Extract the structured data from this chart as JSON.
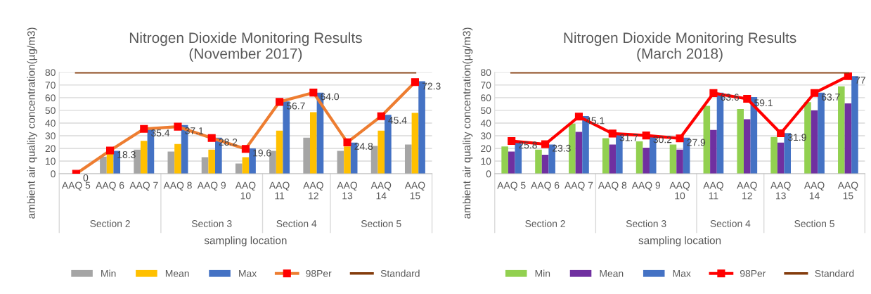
{
  "chart_data": [
    {
      "type": "bar",
      "title": "Nitrogen Dioxide Monitoring Results",
      "subtitle": "(November 2017)",
      "xlabel": "sampling location",
      "ylabel": "ambient air quality concentration(µg/m3)",
      "categories": [
        "AAQ 5",
        "AAQ 6",
        "AAQ 7",
        "AAQ 8",
        "AAQ 9",
        "AAQ 10",
        "AAQ 11",
        "AAQ 12",
        "AAQ 13",
        "AAQ 14",
        "AAQ 15"
      ],
      "series": [
        {
          "name": "Min",
          "color": "#a5a5a5",
          "values": [
            0,
            13.5,
            19,
            17.5,
            13,
            8,
            18,
            28.5,
            18,
            22,
            23
          ]
        },
        {
          "name": "Mean",
          "color": "#ffc000",
          "values": [
            0,
            16,
            26,
            23.5,
            19,
            13,
            34,
            48.5,
            21.5,
            34,
            48
          ]
        },
        {
          "name": "Max",
          "color": "#4472c4",
          "values": [
            0,
            18,
            35,
            38.5,
            28.5,
            20,
            57,
            64,
            24.5,
            46.5,
            73
          ]
        },
        {
          "name": "98Per",
          "type": "line",
          "color": "#ed7d31",
          "marker": "square",
          "colors": [
            "#ff0000",
            "#ff0000",
            "#ff0000",
            "#ff0000",
            "#ff0000",
            "#ff0000",
            "#ff0000",
            "#ff0000",
            "#ff0000",
            "#ff0000",
            "#ff0000"
          ],
          "values": [
            0,
            18.3,
            35.4,
            37.1,
            28.2,
            19.6,
            56.7,
            64.0,
            24.8,
            45.4,
            72.3
          ],
          "value_labels": [
            "0",
            "18.3",
            "35.4",
            "37.1",
            "28.2",
            "19.6",
            "56.7",
            "64.0",
            "24.8",
            "45.4",
            "72.3"
          ]
        },
        {
          "name": "Standard",
          "type": "line",
          "color": "#843c0c",
          "marker": "none",
          "values": [
            80,
            80,
            80,
            80,
            80,
            80,
            80,
            80,
            80,
            80,
            80
          ]
        }
      ],
      "annotations": [
        "Section 2",
        "Section 3",
        "Section 4",
        "Section 5"
      ],
      "ylim": [
        0,
        80
      ],
      "yticks": [
        0,
        10,
        20,
        30,
        40,
        50,
        60,
        70,
        80
      ],
      "grid": "y",
      "legend": "bottom"
    },
    {
      "type": "bar",
      "title": "Nitrogen Dioxide Monitoring Results",
      "subtitle": "(March 2018)",
      "xlabel": "sampling location",
      "ylabel": "ambient air quality concentration(µg/m3)",
      "categories": [
        "AAQ 5",
        "AAQ 6",
        "AAQ 7",
        "AAQ 8",
        "AAQ 9",
        "AAQ 10",
        "AAQ 11",
        "AAQ 12",
        "AAQ 13",
        "AAQ 14",
        "AAQ 15"
      ],
      "series": [
        {
          "name": "Min",
          "color": "#92d050",
          "values": [
            21.5,
            19,
            39.5,
            28,
            25.5,
            23,
            53.5,
            51,
            29,
            56.5,
            69
          ]
        },
        {
          "name": "Mean",
          "color": "#7030a0",
          "values": [
            17.5,
            15,
            33,
            23,
            20.5,
            19,
            34.5,
            43,
            24.5,
            50,
            55.5
          ]
        },
        {
          "name": "Max",
          "color": "#4472c4",
          "values": [
            25,
            23,
            45.5,
            32,
            29.5,
            28.5,
            64,
            60.5,
            32,
            64,
            77
          ]
        },
        {
          "name": "98Per",
          "type": "line",
          "color": "#ff0000",
          "marker": "square",
          "colors": [
            "#ff0000",
            "#ff0000",
            "#ff0000",
            "#ff0000",
            "#ff0000",
            "#ff0000",
            "#ff0000",
            "#ff0000",
            "#ff0000",
            "#ff0000",
            "#ff0000"
          ],
          "values": [
            25.8,
            23.3,
            45.1,
            31.7,
            30.2,
            27.9,
            63.6,
            59.1,
            31.9,
            63.7,
            77
          ],
          "value_labels": [
            "25.8",
            "23.3",
            "45.1",
            "31.7",
            "30.2",
            "27.9",
            "63.6",
            "59.1",
            "31.9",
            "63.7",
            "77"
          ]
        },
        {
          "name": "Standard",
          "type": "line",
          "color": "#843c0c",
          "marker": "none",
          "values": [
            80,
            80,
            80,
            80,
            80,
            80,
            80,
            80,
            80,
            80,
            80
          ]
        }
      ],
      "annotations": [
        "Section 2",
        "Section 3",
        "Section 4",
        "Section 5"
      ],
      "ylim": [
        0,
        80
      ],
      "yticks": [
        0,
        10,
        20,
        30,
        40,
        50,
        60,
        70,
        80
      ],
      "grid": "y",
      "legend": "bottom"
    }
  ]
}
